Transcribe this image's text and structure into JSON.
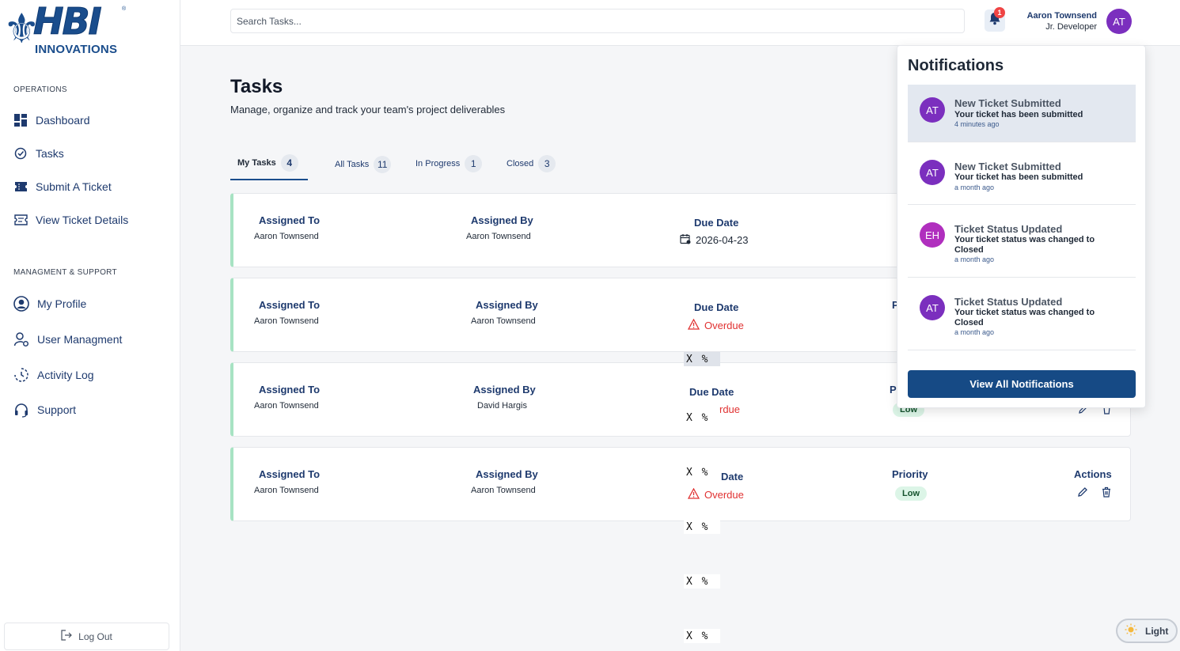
{
  "brand": {
    "name": "HBI",
    "subtitle": "INNOVATIONS",
    "registered": "®"
  },
  "sidebar": {
    "section_operations": "OPERATIONS",
    "section_management": "MANAGMENT & SUPPORT",
    "items": [
      {
        "label": "Dashboard",
        "icon": "dashboard-icon"
      },
      {
        "label": "Tasks",
        "icon": "tasks-check-icon"
      },
      {
        "label": "Submit A Ticket",
        "icon": "ticket-icon"
      },
      {
        "label": "View Ticket Details",
        "icon": "ticket-details-icon"
      },
      {
        "label": "My Profile",
        "icon": "profile-icon"
      },
      {
        "label": "User Managment",
        "icon": "user-settings-icon"
      },
      {
        "label": "Activity Log",
        "icon": "activity-log-icon"
      },
      {
        "label": "Support",
        "icon": "headset-icon"
      }
    ],
    "logout_label": "Log Out"
  },
  "header": {
    "search_placeholder": "Search Tasks...",
    "notification_count": "1",
    "user_name": "Aaron Townsend",
    "user_role": "Jr. Developer",
    "user_initials": "AT"
  },
  "main": {
    "title": "Tasks",
    "subtitle": "Manage, organize and track your team's project deliverables",
    "tabs": [
      {
        "label": "My Tasks",
        "count": "4",
        "active": true
      },
      {
        "label": "All Tasks",
        "count": "11",
        "active": false
      },
      {
        "label": "In Progress",
        "count": "1",
        "active": false
      },
      {
        "label": "Closed",
        "count": "3",
        "active": false
      }
    ],
    "columns": {
      "assigned_to": "Assigned To",
      "assigned_by": "Assigned By",
      "due_date": "Due Date",
      "priority": "Priority",
      "actions": "Actions"
    },
    "tasks": [
      {
        "assigned_to": "Aaron Townsend",
        "assigned_by": "Aaron Townsend",
        "due": "2026-04-23",
        "priority": ""
      },
      {
        "assigned_to": "Aaron Townsend",
        "assigned_by": "Aaron Townsend",
        "due": "Overdue",
        "priority": "",
        "priority_head": "P"
      },
      {
        "assigned_to": "Aaron Townsend",
        "assigned_by": "David Hargis",
        "due": "rdue",
        "priority": "Low",
        "priority_head": "P"
      },
      {
        "assigned_to": "Aaron Townsend",
        "assigned_by": "Aaron Townsend",
        "due_head": "Date",
        "due": "Overdue",
        "priority": "Low"
      }
    ],
    "overlay_glyphs": "X %"
  },
  "notifications": {
    "title": "Notifications",
    "items": [
      {
        "initials": "AT",
        "title": "New Ticket Submitted",
        "message": "Your ticket has been submitted",
        "time": "4 minutes ago",
        "color": "#7b2fbe"
      },
      {
        "initials": "AT",
        "title": "New Ticket Submitted",
        "message": "Your ticket has been submitted",
        "time": "a month ago",
        "color": "#7b2fbe"
      },
      {
        "initials": "EH",
        "title": "Ticket Status Updated",
        "message": "Your ticket status was changed to Closed",
        "time": "a month ago",
        "color": "#b02fbe"
      },
      {
        "initials": "AT",
        "title": "Ticket Status Updated",
        "message": "Your ticket status was changed to Closed",
        "time": "a month ago",
        "color": "#7b2fbe"
      }
    ],
    "view_all": "View All Notifications"
  },
  "theme": {
    "label": "Light"
  },
  "colors": {
    "primary": "#1a4d8c",
    "accent_purple": "#7b2fbe",
    "overdue": "#e03131",
    "low_priority_bg": "#dcf5e7"
  }
}
